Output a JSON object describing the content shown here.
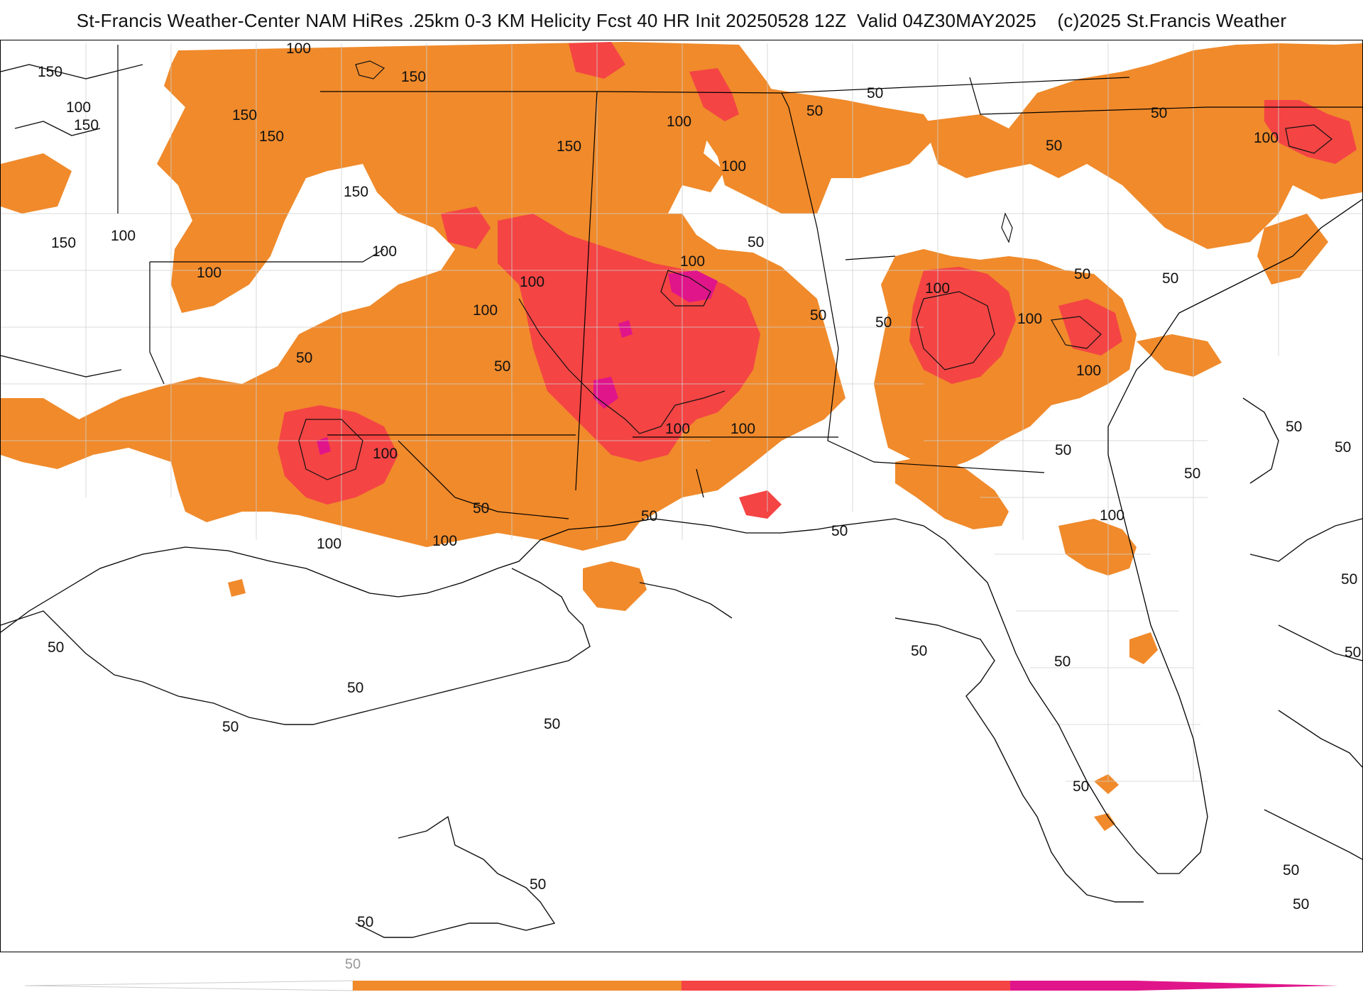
{
  "title": "St-Francis Weather-Center NAM HiRes .25km 0-3 KM Helicity Fcst 40 HR Init 20250528 12Z  Valid 04Z30MAY2025    (c)2025 St.Francis Weather",
  "colors": {
    "level_100": "#f08a2b",
    "level_150": "#f44444",
    "level_200": "#e0158a",
    "contour": "#111111",
    "border": "#000000",
    "county": "#c8c8c8"
  },
  "contour_labels": [
    {
      "text": "100",
      "id": "l1"
    },
    {
      "text": "150",
      "id": "l2"
    },
    {
      "text": "100",
      "id": "l3"
    },
    {
      "text": "150",
      "id": "l4"
    },
    {
      "text": "150",
      "id": "l5"
    },
    {
      "text": "150",
      "id": "l6"
    },
    {
      "text": "150",
      "id": "l7"
    },
    {
      "text": "150",
      "id": "l8"
    },
    {
      "text": "150",
      "id": "l9"
    },
    {
      "text": "100",
      "id": "l10"
    },
    {
      "text": "100",
      "id": "l11"
    },
    {
      "text": "100",
      "id": "l12"
    },
    {
      "text": "50",
      "id": "l13"
    },
    {
      "text": "150",
      "id": "l14"
    },
    {
      "text": "100",
      "id": "l15"
    },
    {
      "text": "50",
      "id": "l16"
    },
    {
      "text": "100",
      "id": "l17"
    },
    {
      "text": "100",
      "id": "l18"
    },
    {
      "text": "100",
      "id": "l19"
    },
    {
      "text": "50",
      "id": "l20"
    },
    {
      "text": "50",
      "id": "l21"
    },
    {
      "text": "50",
      "id": "l22"
    },
    {
      "text": "50",
      "id": "l23"
    },
    {
      "text": "100",
      "id": "l24"
    },
    {
      "text": "50",
      "id": "l25"
    },
    {
      "text": "50",
      "id": "l26"
    },
    {
      "text": "100",
      "id": "l27"
    },
    {
      "text": "100",
      "id": "l28"
    },
    {
      "text": "50",
      "id": "l29"
    },
    {
      "text": "100",
      "id": "l30"
    },
    {
      "text": "50",
      "id": "l31"
    },
    {
      "text": "100",
      "id": "l32"
    },
    {
      "text": "100",
      "id": "l33"
    },
    {
      "text": "50",
      "id": "l34"
    },
    {
      "text": "100",
      "id": "l35"
    },
    {
      "text": "50",
      "id": "l36"
    },
    {
      "text": "50",
      "id": "l37"
    },
    {
      "text": "100",
      "id": "l38"
    },
    {
      "text": "50",
      "id": "l39"
    },
    {
      "text": "50",
      "id": "l40"
    },
    {
      "text": "100",
      "id": "l41"
    },
    {
      "text": "100",
      "id": "l42"
    },
    {
      "text": "50",
      "id": "l43"
    },
    {
      "text": "50",
      "id": "l44"
    },
    {
      "text": "50",
      "id": "l45"
    },
    {
      "text": "50",
      "id": "l46"
    },
    {
      "text": "50",
      "id": "l47"
    },
    {
      "text": "50",
      "id": "l48"
    },
    {
      "text": "50",
      "id": "l49"
    },
    {
      "text": "50",
      "id": "l50"
    },
    {
      "text": "50",
      "id": "l51"
    },
    {
      "text": "50",
      "id": "l52"
    },
    {
      "text": "50",
      "id": "l53"
    },
    {
      "text": "50",
      "id": "l54"
    },
    {
      "text": "100",
      "id": "l55"
    },
    {
      "text": "50",
      "id": "l56"
    },
    {
      "text": "50",
      "id": "l57"
    },
    {
      "text": "50",
      "id": "l58"
    },
    {
      "text": "50",
      "id": "l59"
    }
  ],
  "colorbar": {
    "tick_label": "50",
    "colors": [
      "#f08a2b",
      "#f44444",
      "#e0158a"
    ]
  }
}
